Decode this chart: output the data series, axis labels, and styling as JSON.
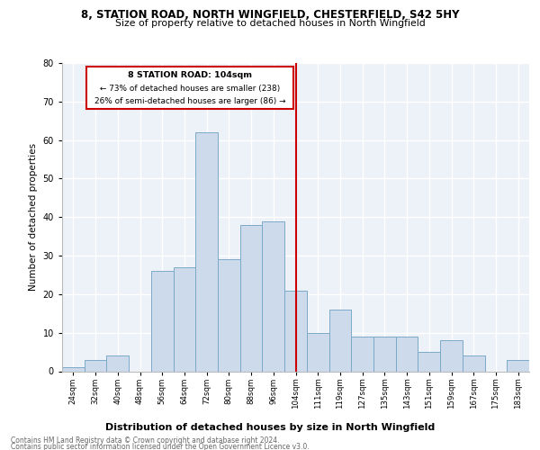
{
  "title1": "8, STATION ROAD, NORTH WINGFIELD, CHESTERFIELD, S42 5HY",
  "title2": "Size of property relative to detached houses in North Wingfield",
  "xlabel": "Distribution of detached houses by size in North Wingfield",
  "ylabel": "Number of detached properties",
  "categories": [
    "24sqm",
    "32sqm",
    "40sqm",
    "48sqm",
    "56sqm",
    "64sqm",
    "72sqm",
    "80sqm",
    "88sqm",
    "96sqm",
    "104sqm",
    "111sqm",
    "119sqm",
    "127sqm",
    "135sqm",
    "143sqm",
    "151sqm",
    "159sqm",
    "167sqm",
    "175sqm",
    "183sqm"
  ],
  "values": [
    1,
    3,
    4,
    0,
    26,
    27,
    62,
    29,
    38,
    39,
    21,
    10,
    16,
    9,
    9,
    9,
    5,
    8,
    4,
    0,
    3
  ],
  "bar_color": "#ccdaeb",
  "bar_edge_color": "#7aaac8",
  "annotation_title": "8 STATION ROAD: 104sqm",
  "annotation_line1": "← 73% of detached houses are smaller (238)",
  "annotation_line2": "26% of semi-detached houses are larger (86) →",
  "annotation_box_color": "#cc0000",
  "line_color": "#cc0000",
  "footer1": "Contains HM Land Registry data © Crown copyright and database right 2024.",
  "footer2": "Contains public sector information licensed under the Open Government Licence v3.0.",
  "ylim": [
    0,
    80
  ],
  "yticks": [
    0,
    10,
    20,
    30,
    40,
    50,
    60,
    70,
    80
  ],
  "bg_color": "#edf2f8",
  "grid_color": "#ffffff"
}
